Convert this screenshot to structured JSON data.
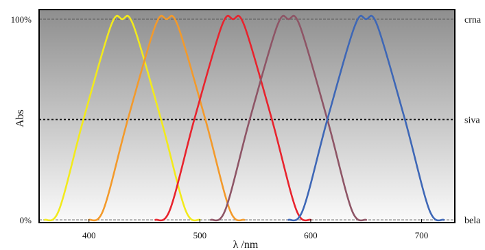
{
  "chart_data": {
    "type": "line",
    "title": "",
    "xlabel": "λ /nm",
    "ylabel": "Abs",
    "xlim": [
      355,
      730
    ],
    "ylim": [
      0,
      100
    ],
    "x_ticks": [
      400,
      500,
      600,
      700
    ],
    "x_tick_labels": [
      "400",
      "500",
      "600",
      "700"
    ],
    "y_ticks": [
      0,
      100
    ],
    "y_tick_labels": [
      "0%",
      "100%"
    ],
    "right_labels": [
      {
        "y": 100,
        "text": "crna"
      },
      {
        "y": 50,
        "text": "siva"
      },
      {
        "y": 0,
        "text": "bela"
      }
    ],
    "reference_lines": [
      100,
      50,
      0
    ],
    "background": {
      "top_color": "#8e8e8e",
      "bottom_color": "#fbfbfb"
    },
    "series": [
      {
        "color": "#f2ea1c",
        "x": [
          360,
          373,
          395,
          420,
          430,
          440,
          465,
          487,
          500
        ],
        "y": [
          0,
          5,
          50,
          97,
          100,
          97,
          50,
          5,
          0
        ]
      },
      {
        "color": "#f39a2b",
        "x": [
          400,
          413,
          435,
          460,
          470,
          480,
          505,
          527,
          540
        ],
        "y": [
          0,
          5,
          50,
          97,
          100,
          97,
          50,
          5,
          0
        ]
      },
      {
        "color": "#e8232d",
        "x": [
          460,
          473,
          495,
          520,
          530,
          540,
          565,
          587,
          600
        ],
        "y": [
          0,
          5,
          50,
          97,
          100,
          97,
          50,
          5,
          0
        ]
      },
      {
        "color": "#8e5566",
        "x": [
          510,
          523,
          545,
          570,
          580,
          590,
          615,
          637,
          650
        ],
        "y": [
          0,
          5,
          50,
          97,
          100,
          97,
          50,
          5,
          0
        ]
      },
      {
        "color": "#3e67b6",
        "x": [
          580,
          593,
          615,
          640,
          650,
          660,
          685,
          707,
          720
        ],
        "y": [
          0,
          5,
          50,
          97,
          100,
          97,
          50,
          5,
          0
        ]
      }
    ]
  }
}
